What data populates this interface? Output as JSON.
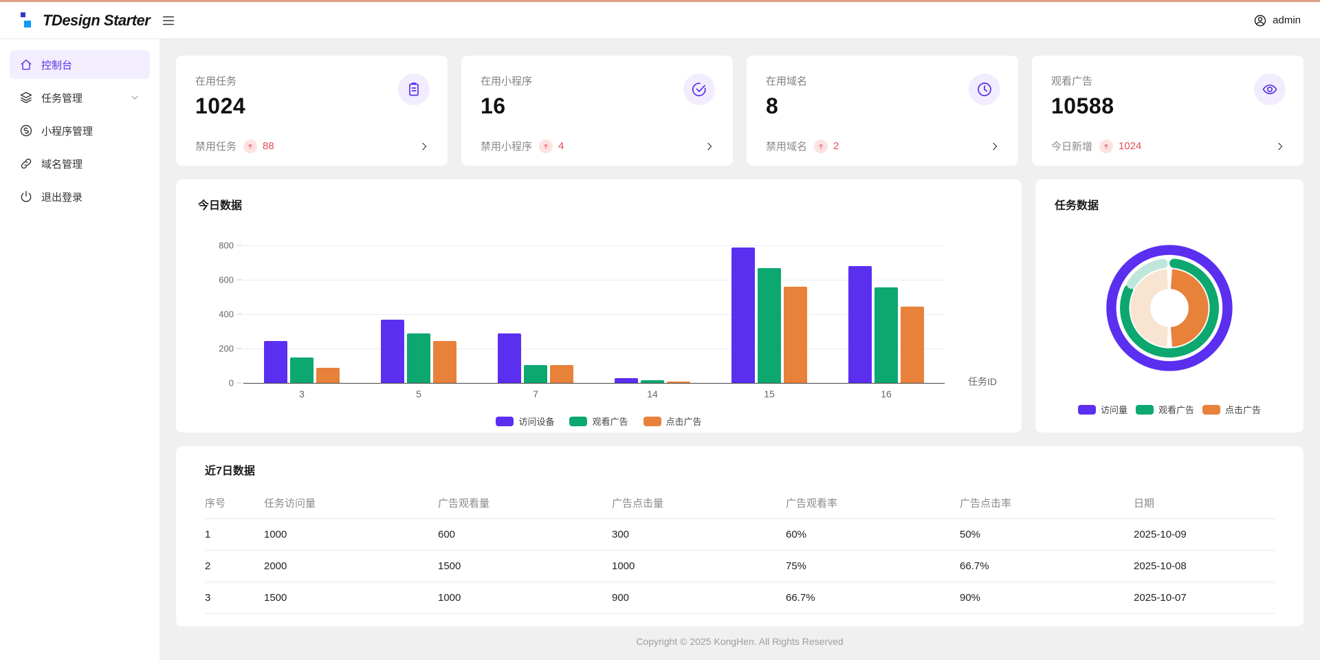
{
  "theme": {
    "top_strip": "#dfa088",
    "brand_purple": "#5a2fe8",
    "active_bg": "#f3eeff",
    "error_red": "#e34d59",
    "chart_purple": "#5b2ff0",
    "chart_green": "#0ca870",
    "chart_orange": "#e8813a",
    "chart_mint": "#bfe6da",
    "chart_peach": "#f8e4d1"
  },
  "header": {
    "logo_text": "TDesign Starter",
    "username": "admin"
  },
  "sidebar": {
    "items": [
      {
        "name": "console",
        "label": "控制台",
        "icon": "dashboard-icon",
        "active": true,
        "chevron": false
      },
      {
        "name": "task-management",
        "label": "任务管理",
        "icon": "layers-icon",
        "active": false,
        "chevron": true
      },
      {
        "name": "miniprogram-management",
        "label": "小程序管理",
        "icon": "miniprogram-icon",
        "active": false,
        "chevron": false
      },
      {
        "name": "domain-management",
        "label": "域名管理",
        "icon": "link-icon",
        "active": false,
        "chevron": false
      },
      {
        "name": "logout",
        "label": "退出登录",
        "icon": "power-icon",
        "active": false,
        "chevron": false
      }
    ]
  },
  "stat_cards": [
    {
      "name": "active-tasks",
      "label": "在用任务",
      "value": "1024",
      "sub_label": "禁用任务",
      "trend_value": "88",
      "icon": "clipboard-icon"
    },
    {
      "name": "active-miniprograms",
      "label": "在用小程序",
      "value": "16",
      "sub_label": "禁用小程序",
      "trend_value": "4",
      "icon": "check-circle-icon"
    },
    {
      "name": "active-domains",
      "label": "在用域名",
      "value": "8",
      "sub_label": "禁用域名",
      "trend_value": "2",
      "icon": "clock-icon"
    },
    {
      "name": "ad-views",
      "label": "观看广告",
      "value": "10588",
      "sub_label": "今日新增",
      "trend_value": "1024",
      "icon": "eye-icon"
    }
  ],
  "chart_data": [
    {
      "id": "today_bar",
      "type": "bar",
      "title": "今日数据",
      "categories": [
        "3",
        "5",
        "7",
        "14",
        "15",
        "16"
      ],
      "series": [
        {
          "name": "访问设备",
          "color": "#5b2ff0",
          "values": [
            245,
            370,
            290,
            30,
            790,
            680
          ]
        },
        {
          "name": "观看广告",
          "color": "#0ca870",
          "values": [
            150,
            290,
            105,
            15,
            670,
            555
          ]
        },
        {
          "name": "点击广告",
          "color": "#e8813a",
          "values": [
            90,
            245,
            105,
            10,
            560,
            445
          ]
        }
      ],
      "xlabel": "任务ID",
      "ylim": [
        0,
        800
      ],
      "yticks": [
        0,
        200,
        400,
        600,
        800
      ],
      "grid": true,
      "legend_position": "bottom"
    },
    {
      "id": "task_donut",
      "type": "donut",
      "title": "任务数据",
      "legend": [
        {
          "label": "访问量",
          "color": "#5b2ff0"
        },
        {
          "label": "观看广告",
          "color": "#0ca870"
        },
        {
          "label": "点击广告",
          "color": "#e8813a"
        }
      ],
      "rings": [
        {
          "name": "访问量",
          "radius": 88,
          "width": 15,
          "cap": "round",
          "segments": [
            {
              "label": "访问量",
              "color": "#5b2ff0",
              "start": 0,
              "end": 359.9
            }
          ]
        },
        {
          "name": "观看广告",
          "radius": 68,
          "width": 14,
          "cap": "round",
          "segments": [
            {
              "label": "观看广告",
              "color": "#0ca870",
              "start": 6,
              "end": 294
            },
            {
              "label": "观看广告-浅色",
              "color": "#bfe6da",
              "start": 302,
              "end": 352
            }
          ]
        },
        {
          "name": "点击广告",
          "radius": 44,
          "width": 30,
          "cap": "butt",
          "segments": [
            {
              "label": "点击广告",
              "color": "#e8813a",
              "start": 4,
              "end": 176
            },
            {
              "label": "点击广告-浅色",
              "color": "#f8e4d1",
              "start": 184,
              "end": 356
            }
          ]
        }
      ]
    }
  ],
  "table": {
    "title": "近7日数据",
    "columns": [
      "序号",
      "任务访问量",
      "广告观看量",
      "广告点击量",
      "广告观看率",
      "广告点击率",
      "日期"
    ],
    "rows": [
      [
        "1",
        "1000",
        "600",
        "300",
        "60%",
        "50%",
        "2025-10-09"
      ],
      [
        "2",
        "2000",
        "1500",
        "1000",
        "75%",
        "66.7%",
        "2025-10-08"
      ],
      [
        "3",
        "1500",
        "1000",
        "900",
        "66.7%",
        "90%",
        "2025-10-07"
      ]
    ]
  },
  "footer": {
    "copyright": "Copyright © 2025 KongHen. All Rights Reserved"
  }
}
